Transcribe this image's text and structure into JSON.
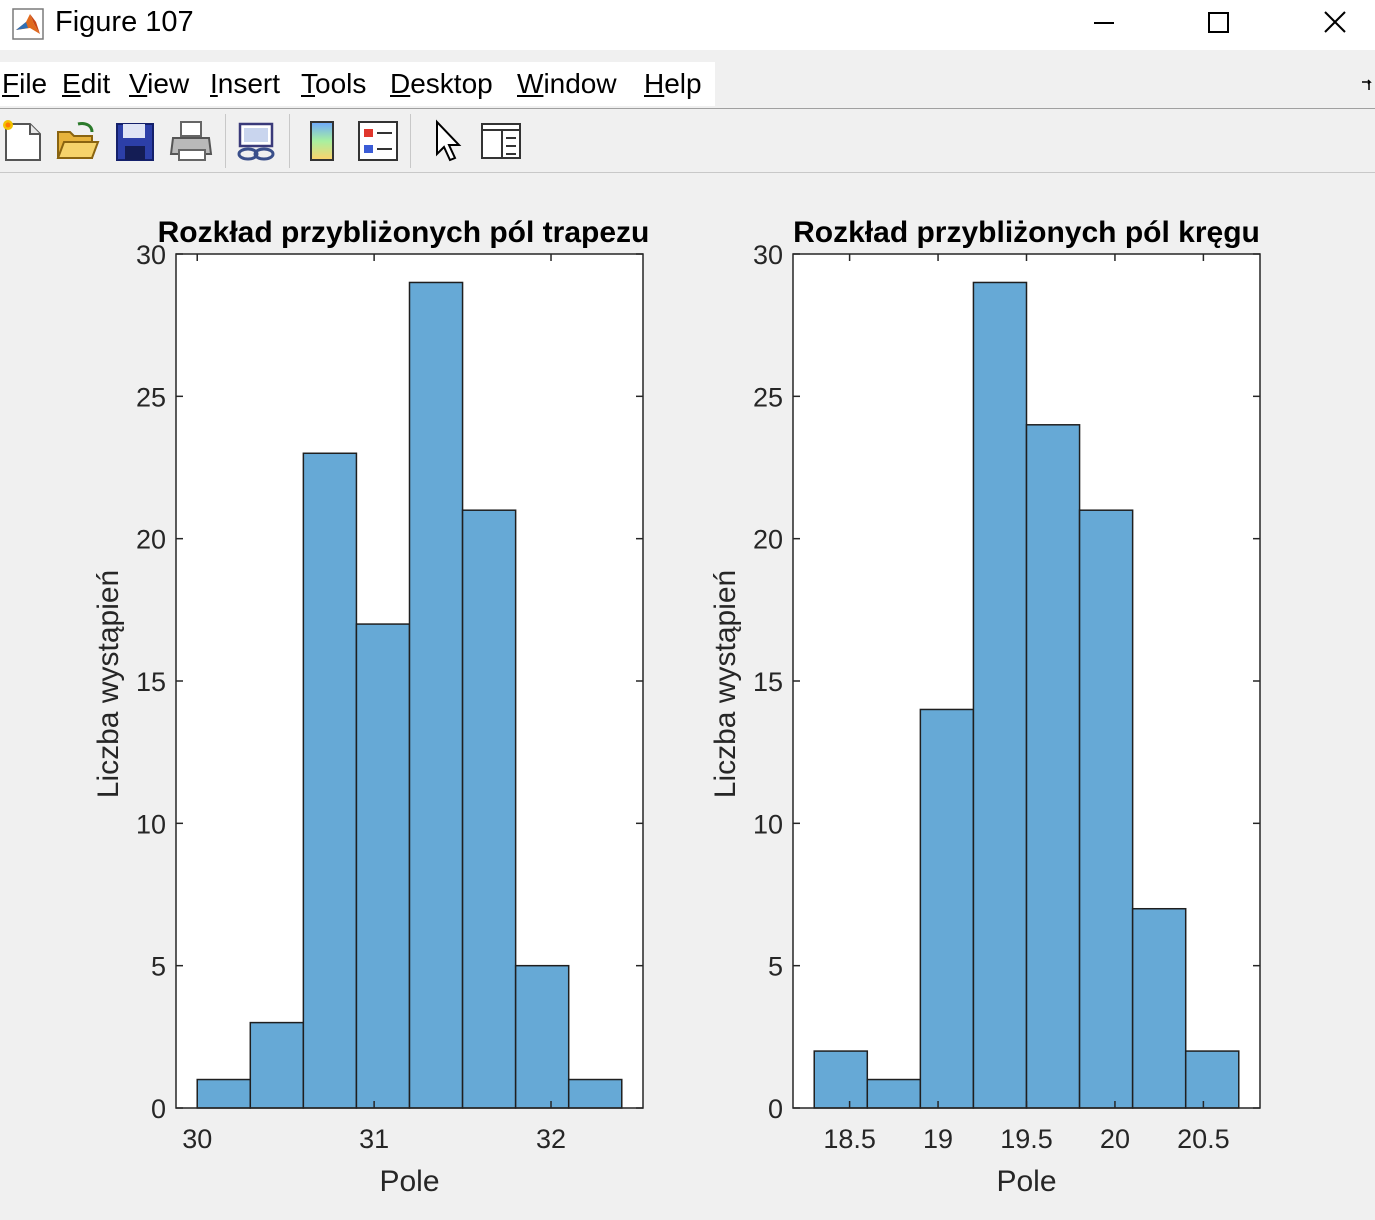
{
  "window": {
    "title": "Figure 107",
    "icon": "matlab-icon",
    "controls": [
      "minimize-icon",
      "maximize-icon",
      "close-icon"
    ]
  },
  "menu": {
    "items": [
      {
        "label": "File",
        "mnemonic": "F",
        "rest": "ile"
      },
      {
        "label": "Edit",
        "mnemonic": "E",
        "rest": "dit"
      },
      {
        "label": "View",
        "mnemonic": "V",
        "rest": "iew"
      },
      {
        "label": "Insert",
        "mnemonic": "I",
        "rest": "nsert"
      },
      {
        "label": "Tools",
        "mnemonic": "T",
        "rest": "ools"
      },
      {
        "label": "Desktop",
        "mnemonic": "D",
        "rest": "esktop"
      },
      {
        "label": "Window",
        "mnemonic": "W",
        "rest": "indow"
      },
      {
        "label": "Help",
        "mnemonic": "H",
        "rest": "elp"
      }
    ]
  },
  "toolbar": {
    "icons": [
      "new-figure-icon",
      "open-file-icon",
      "save-icon",
      "print-icon",
      "link-plot-icon",
      "colorbar-icon",
      "legend-icon",
      "pointer-icon",
      "property-editor-icon"
    ]
  },
  "colors": {
    "bar_fill": "#66a9d6",
    "bar_edge": "#1f1f1f",
    "axes_bg": "#ffffff",
    "figure_bg": "#f0f0f0"
  },
  "chart_data": [
    {
      "type": "bar",
      "title": "Rozkład przybliżonych pól trapezu",
      "xlabel": "Pole",
      "ylabel": "Liczba wystąpień",
      "xlim": [
        29.88,
        32.52
      ],
      "ylim": [
        0,
        30
      ],
      "xticks": [
        30,
        31,
        32
      ],
      "xtick_labels": [
        "30",
        "31",
        "32"
      ],
      "yticks": [
        0,
        5,
        10,
        15,
        20,
        25,
        30
      ],
      "ytick_labels": [
        "0",
        "5",
        "10",
        "15",
        "20",
        "25",
        "30"
      ],
      "bin_edges": [
        30.0,
        30.3,
        30.6,
        30.9,
        31.2,
        31.5,
        31.8,
        32.1,
        32.4
      ],
      "values": [
        1,
        3,
        23,
        17,
        29,
        21,
        5,
        1
      ]
    },
    {
      "type": "bar",
      "title": "Rozkład przybliżonych pól kręgu",
      "xlabel": "Pole",
      "ylabel": "Liczba wystąpień",
      "xlim": [
        18.18,
        20.82
      ],
      "ylim": [
        0,
        30
      ],
      "xticks": [
        18.5,
        19,
        19.5,
        20,
        20.5
      ],
      "xtick_labels": [
        "18.5",
        "19",
        "19.5",
        "20",
        "20.5"
      ],
      "yticks": [
        0,
        5,
        10,
        15,
        20,
        25,
        30
      ],
      "ytick_labels": [
        "0",
        "5",
        "10",
        "15",
        "20",
        "25",
        "30"
      ],
      "bin_edges": [
        18.3,
        18.6,
        18.9,
        19.2,
        19.5,
        19.8,
        20.1,
        20.4,
        20.7
      ],
      "values": [
        2,
        1,
        14,
        29,
        24,
        21,
        7,
        2
      ]
    }
  ]
}
